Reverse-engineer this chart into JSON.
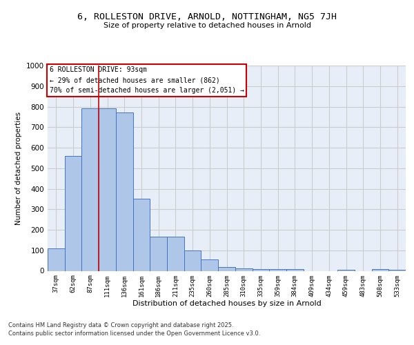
{
  "title_line1": "6, ROLLESTON DRIVE, ARNOLD, NOTTINGHAM, NG5 7JH",
  "title_line2": "Size of property relative to detached houses in Arnold",
  "xlabel": "Distribution of detached houses by size in Arnold",
  "ylabel": "Number of detached properties",
  "categories": [
    "37sqm",
    "62sqm",
    "87sqm",
    "111sqm",
    "136sqm",
    "161sqm",
    "186sqm",
    "211sqm",
    "235sqm",
    "260sqm",
    "285sqm",
    "310sqm",
    "335sqm",
    "359sqm",
    "384sqm",
    "409sqm",
    "434sqm",
    "459sqm",
    "483sqm",
    "508sqm",
    "533sqm"
  ],
  "values": [
    110,
    560,
    790,
    790,
    770,
    350,
    165,
    165,
    98,
    55,
    18,
    13,
    10,
    10,
    8,
    0,
    0,
    5,
    0,
    7,
    5
  ],
  "bar_color": "#aec6e8",
  "bar_edge_color": "#4472c4",
  "vline_color": "#cc0000",
  "annotation_text": "6 ROLLESTON DRIVE: 93sqm\n← 29% of detached houses are smaller (862)\n70% of semi-detached houses are larger (2,051) →",
  "annotation_box_color": "#ffffff",
  "annotation_box_edge": "#cc0000",
  "ylim": [
    0,
    1000
  ],
  "yticks": [
    0,
    100,
    200,
    300,
    400,
    500,
    600,
    700,
    800,
    900,
    1000
  ],
  "grid_color": "#cccccc",
  "bg_color": "#e8eef8",
  "footer_line1": "Contains HM Land Registry data © Crown copyright and database right 2025.",
  "footer_line2": "Contains public sector information licensed under the Open Government Licence v3.0."
}
